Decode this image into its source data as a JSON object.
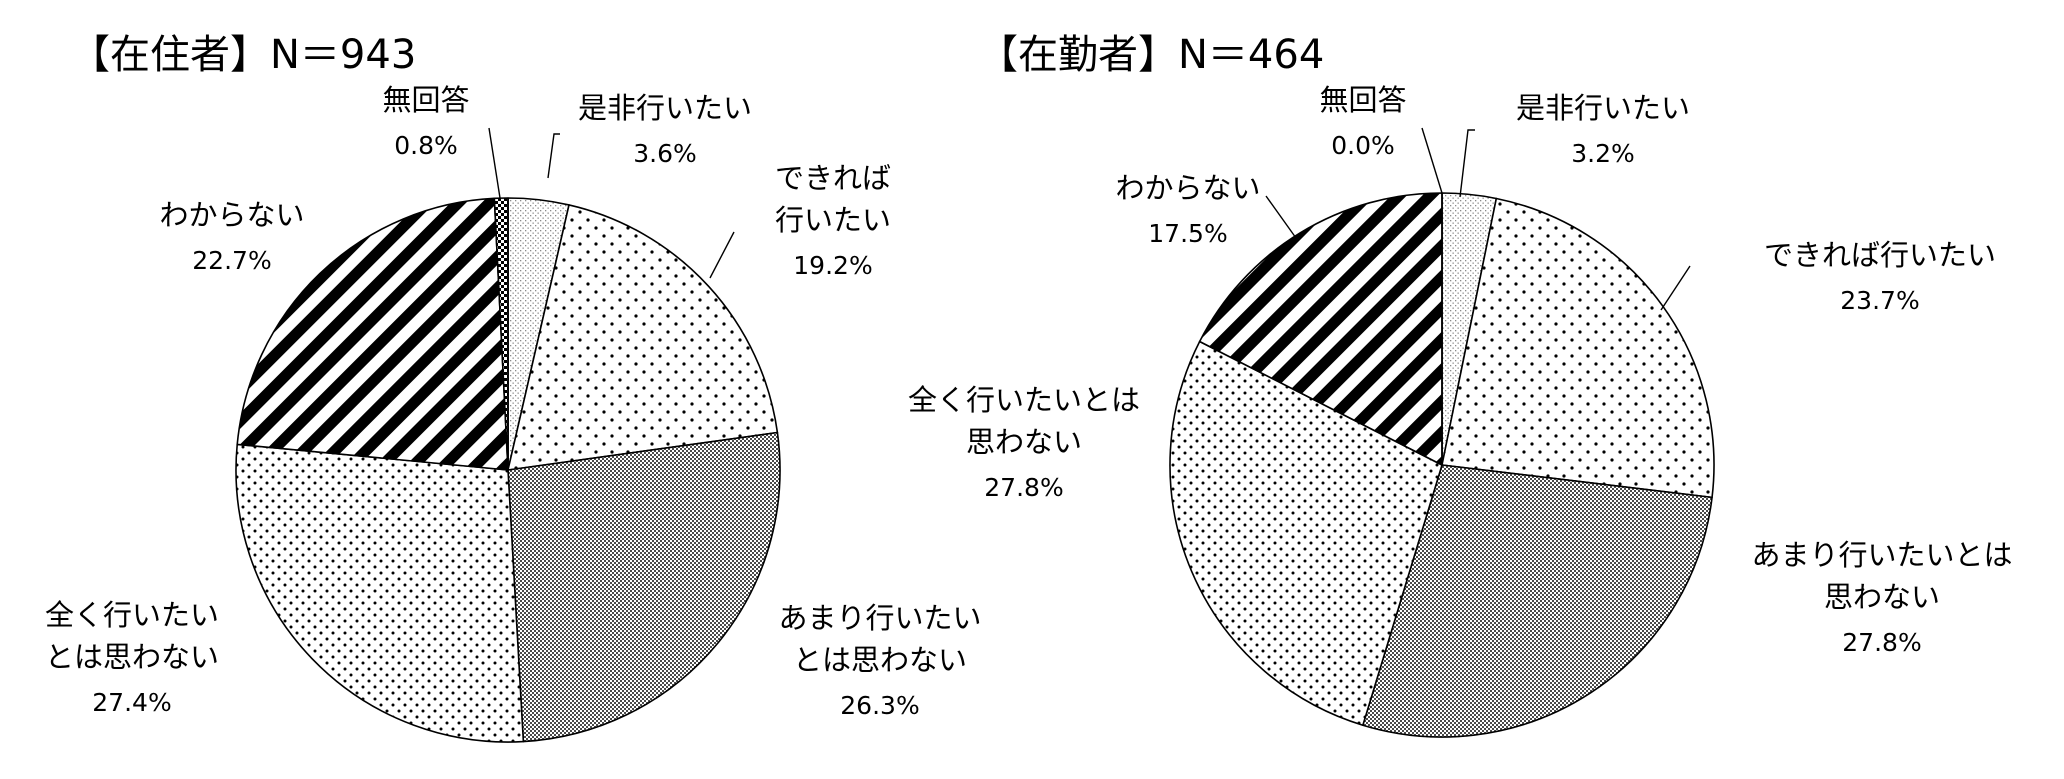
{
  "chart_data": [
    {
      "type": "pie",
      "title": "【在住者】N＝943",
      "slices": [
        {
          "lines": [
            "是非行いたい"
          ],
          "value": 3.6,
          "label": "3.6%",
          "pattern": "light"
        },
        {
          "lines": [
            "できれば",
            "行いたい"
          ],
          "value": 19.2,
          "label": "19.2%",
          "pattern": "dots"
        },
        {
          "lines": [
            "あまり行いたい",
            "とは思わない"
          ],
          "value": 26.3,
          "label": "26.3%",
          "pattern": "dense"
        },
        {
          "lines": [
            "全く行いたい",
            "とは思わない"
          ],
          "value": 27.4,
          "label": "27.4%",
          "pattern": "dotsFine"
        },
        {
          "lines": [
            "わからない"
          ],
          "value": 22.7,
          "label": "22.7%",
          "pattern": "stripes"
        },
        {
          "lines": [
            "無回答"
          ],
          "value": 0.8,
          "label": "0.8%",
          "pattern": "check"
        }
      ]
    },
    {
      "type": "pie",
      "title": "【在勤者】N＝464",
      "slices": [
        {
          "lines": [
            "是非行いたい"
          ],
          "value": 3.2,
          "label": "3.2%",
          "pattern": "light"
        },
        {
          "lines": [
            "できれば行いたい"
          ],
          "value": 23.7,
          "label": "23.7%",
          "pattern": "dots"
        },
        {
          "lines": [
            "あまり行いたいとは",
            "思わない"
          ],
          "value": 27.8,
          "label": "27.8%",
          "pattern": "dense"
        },
        {
          "lines": [
            "全く行いたいとは",
            "思わない"
          ],
          "value": 27.8,
          "label": "27.8%",
          "pattern": "dotsFine"
        },
        {
          "lines": [
            "わからない"
          ],
          "value": 17.5,
          "label": "17.5%",
          "pattern": "stripes"
        },
        {
          "lines": [
            "無回答"
          ],
          "value": 0.0,
          "label": "0.0%",
          "pattern": "check"
        }
      ]
    }
  ]
}
